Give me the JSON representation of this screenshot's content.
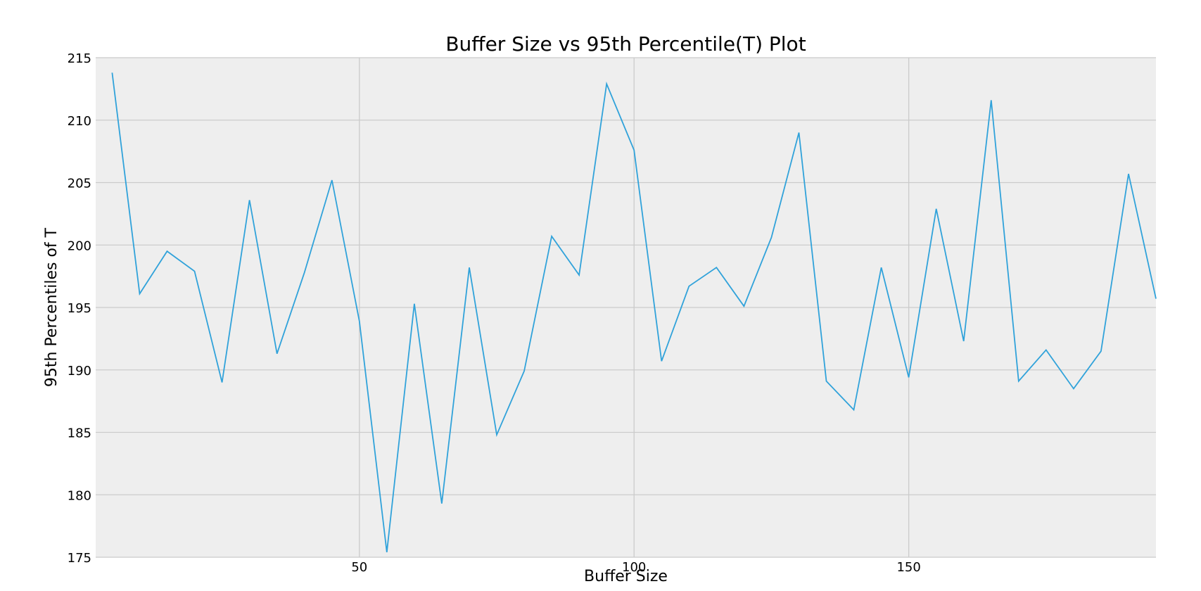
{
  "chart_data": {
    "type": "line",
    "title": "Buffer Size vs 95th Percentile(T) Plot",
    "xlabel": "Buffer Size",
    "ylabel": "95th Percentiles of T",
    "xlim": [
      2,
      195
    ],
    "ylim": [
      175,
      215
    ],
    "xticks": [
      50,
      100,
      150
    ],
    "yticks": [
      175,
      180,
      185,
      190,
      195,
      200,
      205,
      210,
      215
    ],
    "grid": true,
    "background": "#eeeeee",
    "grid_color": "#cbcbcb",
    "line_color": "#30a2da",
    "series": [
      {
        "x": [
          5,
          10,
          15,
          20,
          25,
          30,
          35,
          40,
          45,
          50,
          55,
          60,
          65,
          70,
          75,
          80,
          85,
          90,
          95,
          100,
          105,
          110,
          115,
          120,
          125,
          130,
          135,
          140,
          145,
          150,
          155,
          160,
          165,
          170,
          175,
          180,
          185,
          190,
          195
        ],
        "values": [
          213.8,
          196.1,
          199.5,
          197.9,
          189.0,
          203.6,
          191.3,
          197.8,
          205.2,
          193.9,
          175.4,
          195.3,
          179.3,
          198.2,
          184.8,
          189.9,
          200.7,
          197.6,
          212.9,
          207.6,
          190.7,
          196.7,
          198.2,
          195.1,
          200.6,
          209.0,
          189.1,
          186.8,
          198.2,
          189.4,
          202.9,
          192.3,
          211.6,
          189.1,
          191.6,
          188.5,
          191.5,
          205.7,
          195.7
        ]
      }
    ]
  }
}
